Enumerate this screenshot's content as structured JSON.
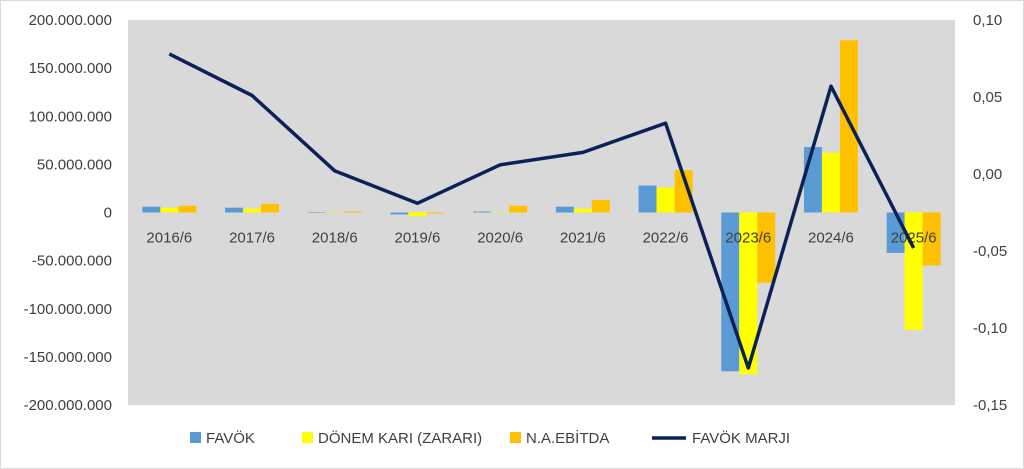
{
  "chart_data": {
    "type": "bar",
    "categories": [
      "2016/6",
      "2017/6",
      "2018/6",
      "2019/6",
      "2020/6",
      "2021/6",
      "2022/6",
      "2023/6",
      "2024/6",
      "2025/6"
    ],
    "series": [
      {
        "name": "FAVÖK",
        "type": "bar",
        "axis": "left",
        "color": "#5b9bd5",
        "values": [
          6000000,
          5000000,
          300000,
          -2000000,
          1000000,
          6000000,
          28000000,
          -165000000,
          68000000,
          -42000000
        ]
      },
      {
        "name": "DÖNEM KARI (ZARARI)",
        "type": "bar",
        "axis": "left",
        "color": "#ffff00",
        "values": [
          5000000,
          4000000,
          300000,
          -4000000,
          500000,
          4000000,
          26000000,
          -168000000,
          62000000,
          -122000000
        ]
      },
      {
        "name": "N.A.EBİTDA",
        "type": "bar",
        "axis": "left",
        "color": "#ffc000",
        "values": [
          7000000,
          9000000,
          1000000,
          -1000000,
          7000000,
          13000000,
          44000000,
          -73000000,
          179000000,
          -55000000
        ]
      },
      {
        "name": "FAVÖK MARJI",
        "type": "line",
        "axis": "right",
        "color": "#0d2159",
        "values": [
          0.078,
          0.051,
          0.002,
          -0.019,
          0.006,
          0.014,
          0.033,
          -0.126,
          0.057,
          -0.048
        ]
      }
    ],
    "y_left": {
      "lim": [
        -200000000,
        200000000
      ],
      "ticks": [
        200000000,
        150000000,
        100000000,
        50000000,
        0,
        -50000000,
        -100000000,
        -150000000,
        -200000000
      ],
      "tick_labels": [
        "200.000.000",
        "150.000.000",
        "100.000.000",
        "50.000.000",
        "0",
        "-50.000.000",
        "-100.000.000",
        "-150.000.000",
        "-200.000.000"
      ]
    },
    "y_right": {
      "lim": [
        -0.15,
        0.1
      ],
      "ticks": [
        0.1,
        0.05,
        0.0,
        -0.05,
        -0.1,
        -0.15
      ],
      "tick_labels": [
        "0,10",
        "0,05",
        "0,00",
        "-0,05",
        "-0,10",
        "-0,15"
      ]
    },
    "plot_background": "#d9d9d9",
    "grid": false,
    "legend_position": "bottom",
    "title": "",
    "xlabel": "",
    "ylabel": ""
  }
}
